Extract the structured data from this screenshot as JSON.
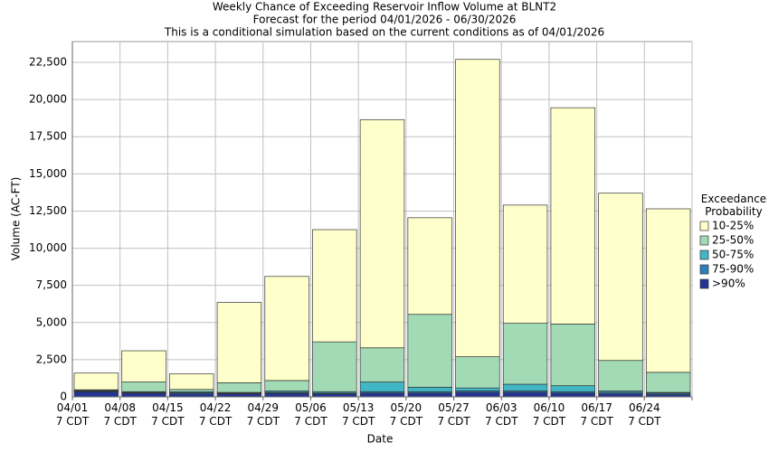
{
  "chart_data": {
    "type": "stacked_bar",
    "title": "Weekly Chance of Exceeding Reservoir Inflow Volume at BLNT2",
    "subtitle": "Forecast for the period 04/01/2026 - 06/30/2026",
    "note": "This is a conditional simulation based on the current conditions as of 04/01/2026",
    "x_label": "Date",
    "y_label": "Volume (AC-FT)",
    "legend_title": "Exceedance Probability",
    "legend_position": "right",
    "grid": true,
    "categories": [
      "04/01 7 CDT",
      "04/08 7 CDT",
      "04/15 7 CDT",
      "04/22 7 CDT",
      "04/29 7 CDT",
      "05/06 7 CDT",
      "05/13 7 CDT",
      "05/20 7 CDT",
      "05/27 7 CDT",
      "06/03 7 CDT",
      "06/10 7 CDT",
      "06/17 7 CDT",
      "06/24 7 CDT"
    ],
    "series": [
      {
        "name": "10-25%",
        "color": "#ffffcc",
        "values": [
          1120,
          2100,
          1050,
          5400,
          7000,
          7550,
          15350,
          6500,
          20000,
          7950,
          14550,
          11250,
          11000
        ]
      },
      {
        "name": "25-50%",
        "color": "#a1dab4",
        "values": [
          50,
          650,
          150,
          650,
          700,
          3350,
          2300,
          4900,
          2100,
          4100,
          4150,
          2050,
          1350
        ]
      },
      {
        "name": "50-75%",
        "color": "#41b6c4",
        "values": [
          30,
          50,
          70,
          50,
          100,
          100,
          650,
          300,
          200,
          450,
          400,
          100,
          50
        ]
      },
      {
        "name": "75-90%",
        "color": "#2c7fb8",
        "values": [
          50,
          50,
          80,
          50,
          50,
          50,
          100,
          100,
          100,
          100,
          100,
          100,
          100
        ]
      },
      {
        "name": ">90%",
        "color": "#253494",
        "values": [
          350,
          250,
          200,
          200,
          250,
          200,
          250,
          250,
          300,
          300,
          250,
          200,
          150
        ]
      }
    ],
    "ylim": [
      0,
      23900
    ],
    "yticks": [
      0,
      {
        "value": 2500,
        "label": "2,500"
      },
      {
        "value": 5000,
        "label": "5,000"
      },
      {
        "value": 7500,
        "label": "7,500"
      },
      {
        "value": 10000,
        "label": "10,000"
      },
      {
        "value": 12500,
        "label": "12,500"
      },
      {
        "value": 15000,
        "label": "15,000"
      },
      {
        "value": 17500,
        "label": "17,500"
      },
      {
        "value": 20000,
        "label": "20,000"
      },
      {
        "value": 22500,
        "label": "22,500"
      }
    ]
  }
}
